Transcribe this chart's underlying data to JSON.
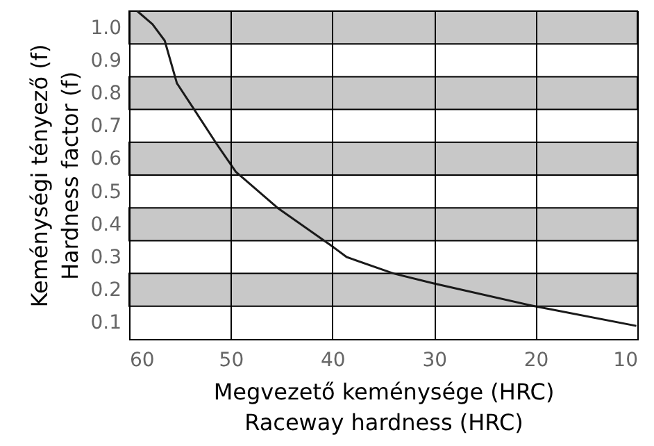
{
  "chart_data": {
    "type": "line",
    "xlabel": "Megvezető keménysége (HRC)\nRaceway hardness (HRC)",
    "ylabel": "Keménységi tényező (f)\nHardness factor (f)",
    "xlim": [
      60,
      10
    ],
    "xticks": [
      60,
      50,
      40,
      30,
      20,
      10
    ],
    "ylim": [
      0.05,
      1.05
    ],
    "yticks": [
      {
        "value": 0.1,
        "label": "0.1"
      },
      {
        "value": 0.2,
        "label": "0.2"
      },
      {
        "value": 0.3,
        "label": "0.3"
      },
      {
        "value": 0.4,
        "label": "0.4"
      },
      {
        "value": 0.5,
        "label": "0.5"
      },
      {
        "value": 0.6,
        "label": "0.6"
      },
      {
        "value": 0.7,
        "label": "0.7"
      },
      {
        "value": 0.8,
        "label": "0.8"
      },
      {
        "value": 0.9,
        "label": "0.9"
      },
      {
        "value": 1,
        "label": "1.0"
      }
    ],
    "grid": "x",
    "bands": [
      {
        "axis": "y",
        "from": 0.95,
        "to": 1.05,
        "color": "#c8c8c8"
      },
      {
        "axis": "y",
        "from": 0.75,
        "to": 0.85,
        "color": "#c8c8c8"
      },
      {
        "axis": "y",
        "from": 0.55,
        "to": 0.65,
        "color": "#c8c8c8"
      },
      {
        "axis": "y",
        "from": 0.35,
        "to": 0.45,
        "color": "#c8c8c8"
      },
      {
        "axis": "y",
        "from": 0.15,
        "to": 0.25,
        "color": "#c8c8c8"
      }
    ],
    "series": [
      {
        "color": "#1a1a1a",
        "x": [
          59.2,
          57.7,
          56.5,
          55.3,
          53.6,
          51.5,
          49.5,
          45.4,
          39.9,
          38.6,
          34.0,
          30.1,
          20.1,
          10.1
        ],
        "values": [
          1.05,
          1.01,
          0.96,
          0.83,
          0.75,
          0.65,
          0.56,
          0.45,
          0.33,
          0.3,
          0.25,
          0.22,
          0.15,
          0.09
        ]
      }
    ]
  }
}
